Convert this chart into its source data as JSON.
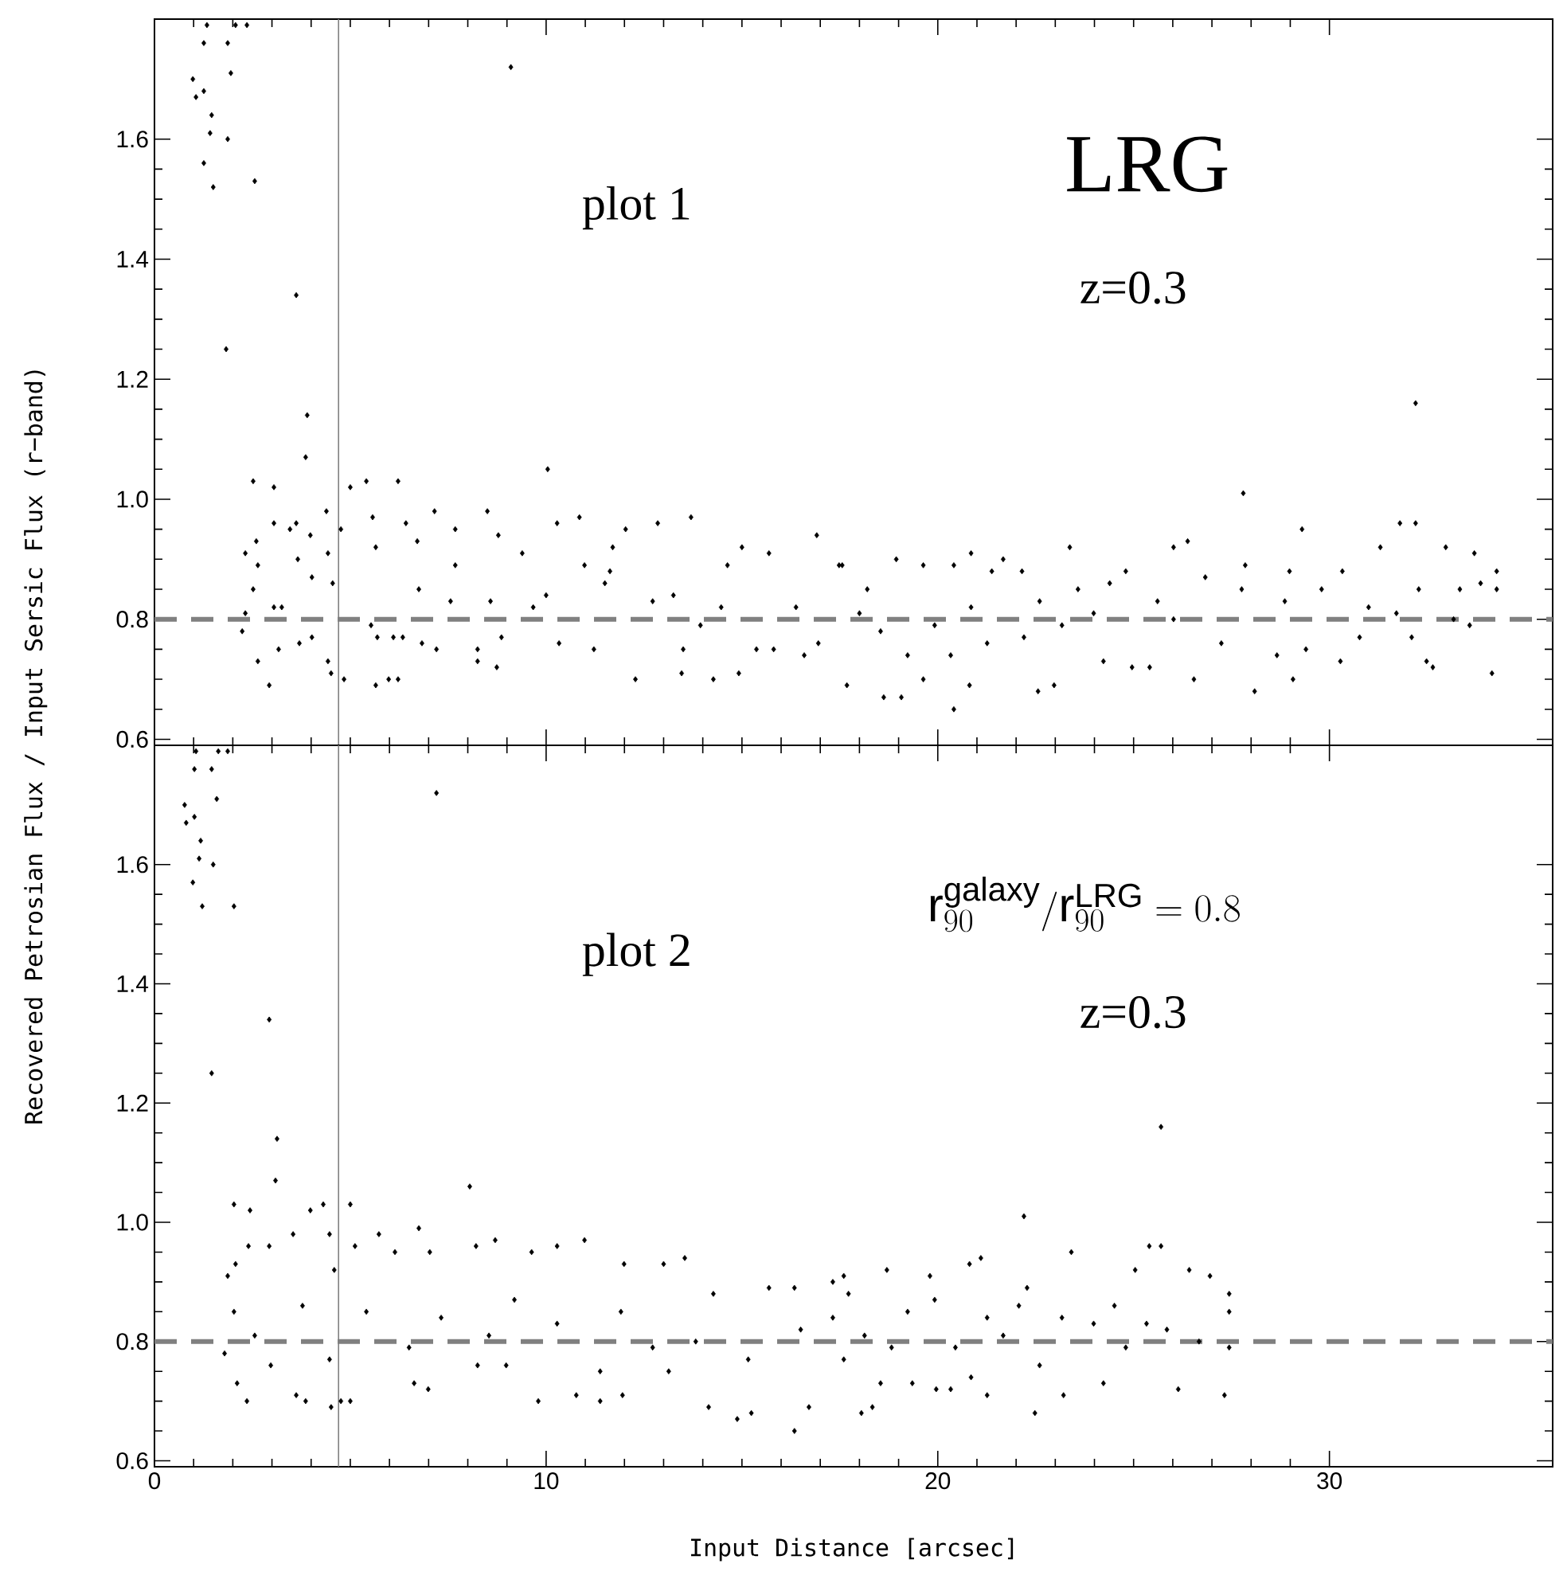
{
  "chart_data": [
    {
      "type": "scatter",
      "ylabel": "Recovered Petrosian Flux / Input Sersic Flux (r−band)",
      "xlim": [
        0,
        35.7
      ],
      "ylim": [
        0.59,
        1.8
      ],
      "xticks": [
        0,
        10,
        20,
        30
      ],
      "yticks": [
        0.6,
        0.8,
        {
          "value": 1.0,
          "label": "1.0"
        },
        1.2,
        1.4,
        1.6
      ],
      "tick_labels": "y",
      "marker": "diamond",
      "series": [
        {
          "color": "#000000",
          "x": [
            1.34,
            1.26,
            1.87,
            1.95,
            0.98,
            1.06,
            1.26,
            1.46,
            1.42,
            1.87,
            1.26,
            1.5,
            2.56,
            2.07,
            2.36,
            9.1,
            3.62,
            1.83,
            3.9,
            3.86,
            10.04,
            32.2,
            27.8,
            29.3,
            31.8,
            32.2,
            2.52,
            3.05,
            2.32,
            2.6,
            2.64,
            2.52,
            2.32,
            2.24,
            2.64,
            2.93,
            3.05,
            3.17,
            3.05,
            3.25,
            3.46,
            3.62,
            3.7,
            3.66,
            4.02,
            4.02,
            3.98,
            4.39,
            4.43,
            4.55,
            4.43,
            4.51,
            4.76,
            4.84,
            5.0,
            5.41,
            6.22,
            5.57,
            5.65,
            5.65,
            5.98,
            6.22,
            6.42,
            5.53,
            5.69,
            6.1,
            6.34,
            6.71,
            6.75,
            6.83,
            7.15,
            7.2,
            7.68,
            7.68,
            7.56,
            8.25,
            8.25,
            8.5,
            8.78,
            8.74,
            8.86,
            8.58,
            9.39,
            9.67,
            10.28,
            10.85,
            10.33,
            11.22,
            10.98,
            11.5,
            11.7,
            12.03,
            12.28,
            12.85,
            13.7,
            13.5,
            13.46,
            13.94,
            14.27,
            14.63,
            14.92,
            15.0,
            15.37,
            15.69,
            15.81,
            16.59,
            16.91,
            16.95,
            17.68,
            17.48,
            12.72,
            14.47,
            16.38,
            10.0,
            11.63,
            13.25,
            17.56,
            18.62,
            19.07,
            18.94,
            19.63,
            19.63,
            20.41,
            20.41,
            20.85,
            20.81,
            21.67,
            22.56,
            22.97,
            23.37,
            22.15,
            25.41,
            24.96,
            26.02,
            26.38,
            26.54,
            28.09,
            27.85,
            29.07,
            28.66,
            28.98,
            30.33,
            30.28,
            31.3,
            32.64,
            32.97,
            33.7,
            34.15,
            34.27,
            34.27,
            33.86,
            32.28,
            33.33,
            30.77,
            31.0,
            32.1,
            32.48,
            29.8,
            29.4,
            28.86,
            27.24,
            26.83,
            25.61,
            24.8,
            24.23,
            23.98,
            23.17,
            22.6,
            22.2,
            21.26,
            20.33,
            19.92,
            19.23,
            18.54,
            18.0,
            18.2,
            21.38,
            20.85,
            23.58,
            24.39,
            26.02,
            27.76,
            31.71,
            33.17,
            33.58
          ],
          "values": [
            1.79,
            1.76,
            1.76,
            1.71,
            1.7,
            1.67,
            1.68,
            1.64,
            1.61,
            1.6,
            1.56,
            1.52,
            1.53,
            1.79,
            1.79,
            1.72,
            1.34,
            1.25,
            1.14,
            1.07,
            1.05,
            1.16,
            1.01,
            0.95,
            0.96,
            0.96,
            1.03,
            1.02,
            0.91,
            0.93,
            0.89,
            0.85,
            0.81,
            0.78,
            0.73,
            0.69,
            0.96,
            0.75,
            0.82,
            0.82,
            0.95,
            0.96,
            0.76,
            0.9,
            0.87,
            0.77,
            0.94,
            0.98,
            0.91,
            0.86,
            0.73,
            0.71,
            0.95,
            0.7,
            1.02,
            1.03,
            1.03,
            0.97,
            0.92,
            0.69,
            0.7,
            0.7,
            0.96,
            0.79,
            0.77,
            0.77,
            0.77,
            0.93,
            0.85,
            0.76,
            0.98,
            0.75,
            0.95,
            0.89,
            0.83,
            0.75,
            0.73,
            0.98,
            0.94,
            0.72,
            0.77,
            0.83,
            0.91,
            0.82,
            0.96,
            0.97,
            0.76,
            0.75,
            0.89,
            0.86,
            0.92,
            0.95,
            0.7,
            0.96,
            0.97,
            0.75,
            0.71,
            0.79,
            0.7,
            0.89,
            0.71,
            0.92,
            0.75,
            0.91,
            0.75,
            0.74,
            0.94,
            0.76,
            0.69,
            0.89,
            0.83,
            0.82,
            0.82,
            0.84,
            0.88,
            0.84,
            0.89,
            0.67,
            0.67,
            0.9,
            0.89,
            0.7,
            0.65,
            0.89,
            0.91,
            0.69,
            0.9,
            0.68,
            0.69,
            0.92,
            0.88,
            0.72,
            0.72,
            0.92,
            0.93,
            0.7,
            0.68,
            0.89,
            0.7,
            0.74,
            0.88,
            0.88,
            0.73,
            0.92,
            0.72,
            0.92,
            0.91,
            0.71,
            0.88,
            0.85,
            0.86,
            0.85,
            0.85,
            0.77,
            0.82,
            0.77,
            0.73,
            0.85,
            0.75,
            0.83,
            0.76,
            0.87,
            0.83,
            0.88,
            0.73,
            0.81,
            0.79,
            0.83,
            0.77,
            0.76,
            0.74,
            0.79,
            0.74,
            0.78,
            0.81,
            0.85,
            0.88,
            0.82,
            0.85,
            0.86,
            0.8,
            0.85,
            0.81,
            0.8,
            0.79
          ]
        }
      ],
      "ref_lines": [
        {
          "axis": "y",
          "value": 0.8,
          "color": "#808080",
          "line_style": "dashed"
        },
        {
          "axis": "x",
          "value": 4.7,
          "color": "#808080",
          "line_style": "solid"
        }
      ],
      "annotations": [
        "plot 1",
        "LRG",
        "z=0.3"
      ]
    },
    {
      "type": "scatter",
      "xlabel": "Input Distance [arcsec]",
      "xlim": [
        0,
        35.7
      ],
      "ylim": [
        0.59,
        1.8
      ],
      "xticks": [
        0,
        10,
        20,
        30
      ],
      "yticks": [
        0.6,
        0.8,
        {
          "value": 1.0,
          "label": "1.0"
        },
        1.2,
        1.4,
        1.6
      ],
      "marker": "diamond",
      "series": [
        {
          "color": "#000000",
          "x": [
            1.06,
            1.63,
            1.87,
            1.02,
            1.46,
            1.59,
            0.77,
            0.81,
            1.02,
            1.18,
            1.14,
            1.5,
            0.98,
            1.22,
            2.03,
            7.2,
            2.93,
            1.46,
            3.13,
            3.09,
            8.05,
            25.7,
            22.2,
            25.4,
            25.7,
            2.03,
            2.44,
            1.87,
            2.07,
            1.79,
            2.11,
            2.36,
            2.03,
            2.4,
            2.56,
            2.93,
            2.97,
            3.54,
            3.62,
            3.86,
            3.98,
            4.31,
            4.47,
            4.51,
            4.76,
            5.0,
            5.0,
            4.47,
            4.59,
            5.12,
            5.73,
            6.14,
            6.63,
            6.99,
            6.75,
            7.03,
            8.25,
            8.21,
            8.7,
            8.98,
            9.8,
            9.63,
            10.28,
            10.98,
            10.77,
            11.38,
            11.95,
            11.99,
            13.0,
            13.54,
            14.15,
            14.88,
            15.24,
            16.34,
            16.71,
            16.34,
            17.32,
            15.69,
            14.27,
            3.78,
            5.41,
            7.32,
            9.19,
            10.28,
            11.91,
            12.72,
            13.82,
            15.16,
            16.5,
            17.6,
            8.54,
            6.5,
            11.38,
            13.13,
            17.32,
            17.6,
            18.05,
            18.33,
            17.72,
            18.54,
            18.7,
            19.35,
            19.8,
            19.96,
            20.33,
            20.81,
            21.1,
            21.26,
            20.85,
            22.28,
            22.48,
            23.41,
            23.21,
            24.23,
            25.04,
            26.14,
            26.42,
            26.95,
            27.44,
            27.32,
            27.44,
            27.44,
            26.67,
            25.85,
            25.33,
            24.8,
            23.98,
            23.17,
            22.6,
            21.67,
            21.26,
            20.45,
            19.23,
            18.82,
            18.13,
            19.92,
            22.07,
            24.51
          ],
          "values": [
            1.79,
            1.79,
            1.79,
            1.76,
            1.76,
            1.71,
            1.7,
            1.67,
            1.68,
            1.64,
            1.61,
            1.6,
            1.57,
            1.53,
            1.53,
            1.72,
            1.34,
            1.25,
            1.14,
            1.07,
            1.06,
            1.16,
            1.01,
            0.96,
            0.96,
            1.03,
            1.02,
            0.91,
            0.93,
            0.78,
            0.73,
            0.7,
            0.85,
            0.96,
            0.81,
            0.96,
            0.76,
            0.98,
            0.71,
            0.7,
            1.02,
            1.03,
            0.98,
            0.69,
            0.7,
            1.03,
            0.7,
            0.77,
            0.92,
            0.96,
            0.98,
            0.95,
            0.73,
            0.72,
            0.99,
            0.95,
            0.76,
            0.96,
            0.97,
            0.76,
            0.7,
            0.95,
            0.96,
            0.97,
            0.71,
            0.7,
            0.71,
            0.93,
            0.93,
            0.94,
            0.69,
            0.67,
            0.68,
            0.65,
            0.69,
            0.89,
            0.9,
            0.89,
            0.88,
            0.86,
            0.85,
            0.84,
            0.87,
            0.83,
            0.85,
            0.79,
            0.8,
            0.77,
            0.82,
            0.77,
            0.81,
            0.79,
            0.75,
            0.75,
            0.84,
            0.91,
            0.68,
            0.69,
            0.88,
            0.73,
            0.92,
            0.73,
            0.91,
            0.72,
            0.72,
            0.93,
            0.94,
            0.71,
            0.74,
            0.89,
            0.68,
            0.95,
            0.71,
            0.73,
            0.92,
            0.72,
            0.92,
            0.91,
            0.88,
            0.71,
            0.85,
            0.79,
            0.8,
            0.82,
            0.83,
            0.79,
            0.83,
            0.84,
            0.76,
            0.81,
            0.84,
            0.79,
            0.85,
            0.79,
            0.81,
            0.87,
            0.86,
            0.86
          ]
        }
      ],
      "ref_lines": [
        {
          "axis": "y",
          "value": 0.8,
          "color": "#808080",
          "line_style": "dashed"
        },
        {
          "axis": "x",
          "value": 4.7,
          "color": "#808080",
          "line_style": "solid"
        }
      ],
      "annotations": [
        "plot 2",
        "\\mathrm{r}^{\\mathrm{galaxy}}_{90}/\\mathrm{r}^{\\mathrm{LRG}}_{90} = 0.8",
        "z=0.3"
      ]
    }
  ]
}
